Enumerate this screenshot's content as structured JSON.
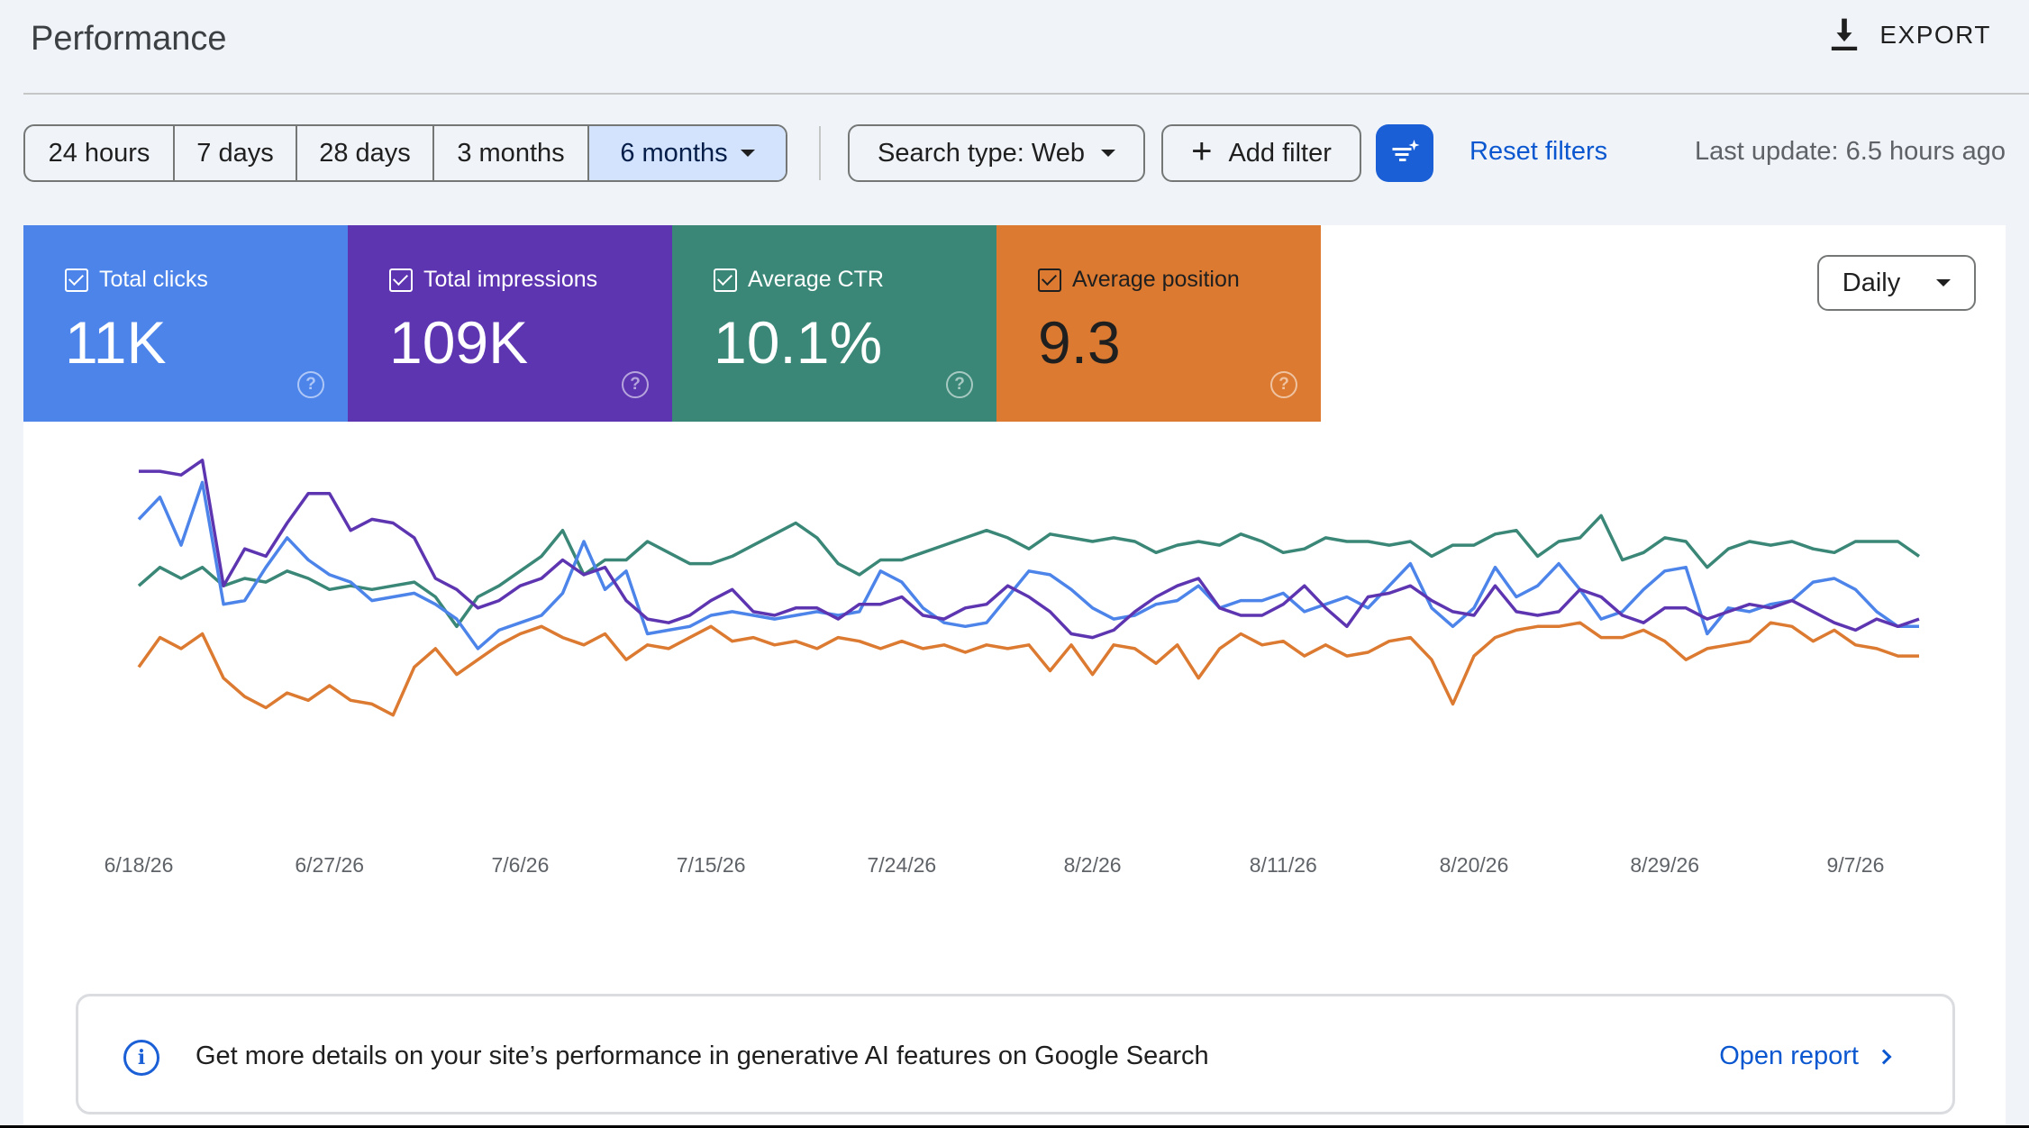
{
  "header": {
    "title": "Performance",
    "export_label": "EXPORT",
    "export_icon": "download-icon"
  },
  "toolbar": {
    "ranges": [
      {
        "label": "24 hours",
        "active": false
      },
      {
        "label": "7 days",
        "active": false
      },
      {
        "label": "28 days",
        "active": false
      },
      {
        "label": "3 months",
        "active": false
      },
      {
        "label": "6 months",
        "active": true
      }
    ],
    "search_type": "Search type: Web",
    "add_filter": "Add filter",
    "reset_filters": "Reset filters",
    "last_update": "Last update: 6.5 hours ago"
  },
  "metrics": [
    {
      "label": "Total clicks",
      "value": "11K",
      "color": "#4c84ea",
      "checked": true
    },
    {
      "label": "Total impressions",
      "value": "109K",
      "color": "#5e35b1",
      "checked": true
    },
    {
      "label": "Average CTR",
      "value": "10.1%",
      "color": "#3a8777",
      "checked": true
    },
    {
      "label": "Average position",
      "value": "9.3",
      "color": "#db7a30",
      "checked": true
    }
  ],
  "granularity": "Daily",
  "chart_data": {
    "type": "line",
    "x": [
      "6/18/26",
      "6/19/26",
      "6/20/26",
      "6/21/26",
      "6/22/26",
      "6/23/26",
      "6/24/26",
      "6/25/26",
      "6/26/26",
      "6/27/26",
      "6/28/26",
      "6/29/26",
      "6/30/26",
      "7/1/26",
      "7/2/26",
      "7/3/26",
      "7/4/26",
      "7/5/26",
      "7/6/26",
      "7/7/26",
      "7/8/26",
      "7/9/26",
      "7/10/26",
      "7/11/26",
      "7/12/26",
      "7/13/26",
      "7/14/26",
      "7/15/26",
      "7/16/26",
      "7/17/26",
      "7/18/26",
      "7/19/26",
      "7/20/26",
      "7/21/26",
      "7/22/26",
      "7/23/26",
      "7/24/26",
      "7/25/26",
      "7/26/26",
      "7/27/26",
      "7/28/26",
      "7/29/26",
      "7/30/26",
      "7/31/26",
      "8/1/26",
      "8/2/26",
      "8/3/26",
      "8/4/26",
      "8/5/26",
      "8/6/26",
      "8/7/26",
      "8/8/26",
      "8/9/26",
      "8/10/26",
      "8/11/26",
      "8/12/26",
      "8/13/26",
      "8/14/26",
      "8/15/26",
      "8/16/26",
      "8/17/26",
      "8/18/26",
      "8/19/26",
      "8/20/26",
      "8/21/26",
      "8/22/26",
      "8/23/26",
      "8/24/26",
      "8/25/26",
      "8/26/26",
      "8/27/26",
      "8/28/26",
      "8/29/26",
      "8/30/26",
      "8/31/26",
      "9/1/26",
      "9/2/26",
      "9/3/26",
      "9/4/26",
      "9/5/26",
      "9/6/26",
      "9/7/26",
      "9/8/26",
      "9/9/26",
      "9/10/26"
    ],
    "x_ticks": [
      "6/18/26",
      "6/27/26",
      "7/6/26",
      "7/15/26",
      "7/24/26",
      "8/2/26",
      "8/11/26",
      "8/20/26",
      "8/29/26",
      "9/7/26"
    ],
    "series": [
      {
        "name": "Total clicks",
        "color": "#4c84ea",
        "values": [
          76,
          82,
          69,
          86,
          53,
          54,
          63,
          71,
          65,
          61,
          59,
          54,
          55,
          56,
          53,
          49,
          41,
          46,
          48,
          50,
          56,
          70,
          57,
          62,
          45,
          46,
          47,
          50,
          51,
          50,
          49,
          50,
          51,
          50,
          51,
          62,
          59,
          52,
          48,
          47,
          48,
          55,
          62,
          61,
          57,
          52,
          49,
          50,
          53,
          54,
          58,
          52,
          54,
          54,
          56,
          51,
          53,
          55,
          52,
          58,
          64,
          52,
          47,
          52,
          63,
          55,
          58,
          64,
          57,
          49,
          51,
          57,
          62,
          63,
          45,
          52,
          51,
          53,
          54,
          59,
          60,
          57,
          51,
          47,
          47
        ]
      },
      {
        "name": "Total impressions",
        "color": "#5e35b1",
        "values": [
          89,
          89,
          88,
          92,
          58,
          68,
          66,
          75,
          83,
          83,
          73,
          76,
          75,
          71,
          60,
          57,
          52,
          54,
          58,
          60,
          65,
          61,
          63,
          54,
          49,
          48,
          50,
          54,
          57,
          51,
          50,
          52,
          52,
          49,
          53,
          53,
          55,
          50,
          49,
          52,
          53,
          58,
          55,
          51,
          45,
          44,
          46,
          51,
          55,
          58,
          60,
          52,
          50,
          50,
          53,
          58,
          52,
          47,
          55,
          56,
          58,
          54,
          51,
          50,
          58,
          51,
          50,
          51,
          57,
          55,
          50,
          48,
          52,
          52,
          49,
          51,
          53,
          52,
          54,
          51,
          48,
          46,
          49,
          47,
          49
        ]
      },
      {
        "name": "Average CTR",
        "color": "#3a8777",
        "values": [
          58,
          63,
          60,
          63,
          58,
          60,
          59,
          62,
          60,
          57,
          58,
          57,
          58,
          59,
          55,
          47,
          55,
          58,
          62,
          66,
          73,
          61,
          65,
          65,
          70,
          67,
          64,
          64,
          66,
          69,
          72,
          75,
          71,
          64,
          61,
          65,
          65,
          67,
          69,
          71,
          73,
          71,
          68,
          72,
          71,
          70,
          71,
          70,
          67,
          69,
          70,
          69,
          72,
          70,
          67,
          68,
          71,
          70,
          70,
          69,
          70,
          66,
          69,
          69,
          72,
          73,
          66,
          70,
          71,
          77,
          65,
          67,
          71,
          70,
          63,
          68,
          70,
          69,
          70,
          68,
          67,
          70,
          70,
          70,
          66
        ]
      },
      {
        "name": "Average position",
        "color": "#db7a30",
        "values": [
          36,
          44,
          41,
          45,
          33,
          28,
          25,
          29,
          27,
          31,
          27,
          26,
          23,
          36,
          41,
          34,
          38,
          42,
          45,
          47,
          44,
          42,
          45,
          38,
          42,
          41,
          44,
          47,
          43,
          44,
          42,
          43,
          41,
          44,
          43,
          41,
          43,
          41,
          42,
          40,
          42,
          41,
          42,
          35,
          42,
          34,
          42,
          41,
          37,
          42,
          33,
          41,
          45,
          42,
          43,
          39,
          42,
          39,
          40,
          43,
          44,
          38,
          26,
          39,
          44,
          46,
          47,
          47,
          48,
          44,
          44,
          46,
          43,
          38,
          41,
          42,
          43,
          48,
          47,
          43,
          46,
          42,
          41,
          39,
          39
        ]
      }
    ],
    "ylim": [
      0,
      100
    ],
    "grid": false,
    "legend": "none"
  },
  "banner": {
    "text": "Get more details on your site’s performance in generative AI features on Google Search",
    "link": "Open report"
  }
}
